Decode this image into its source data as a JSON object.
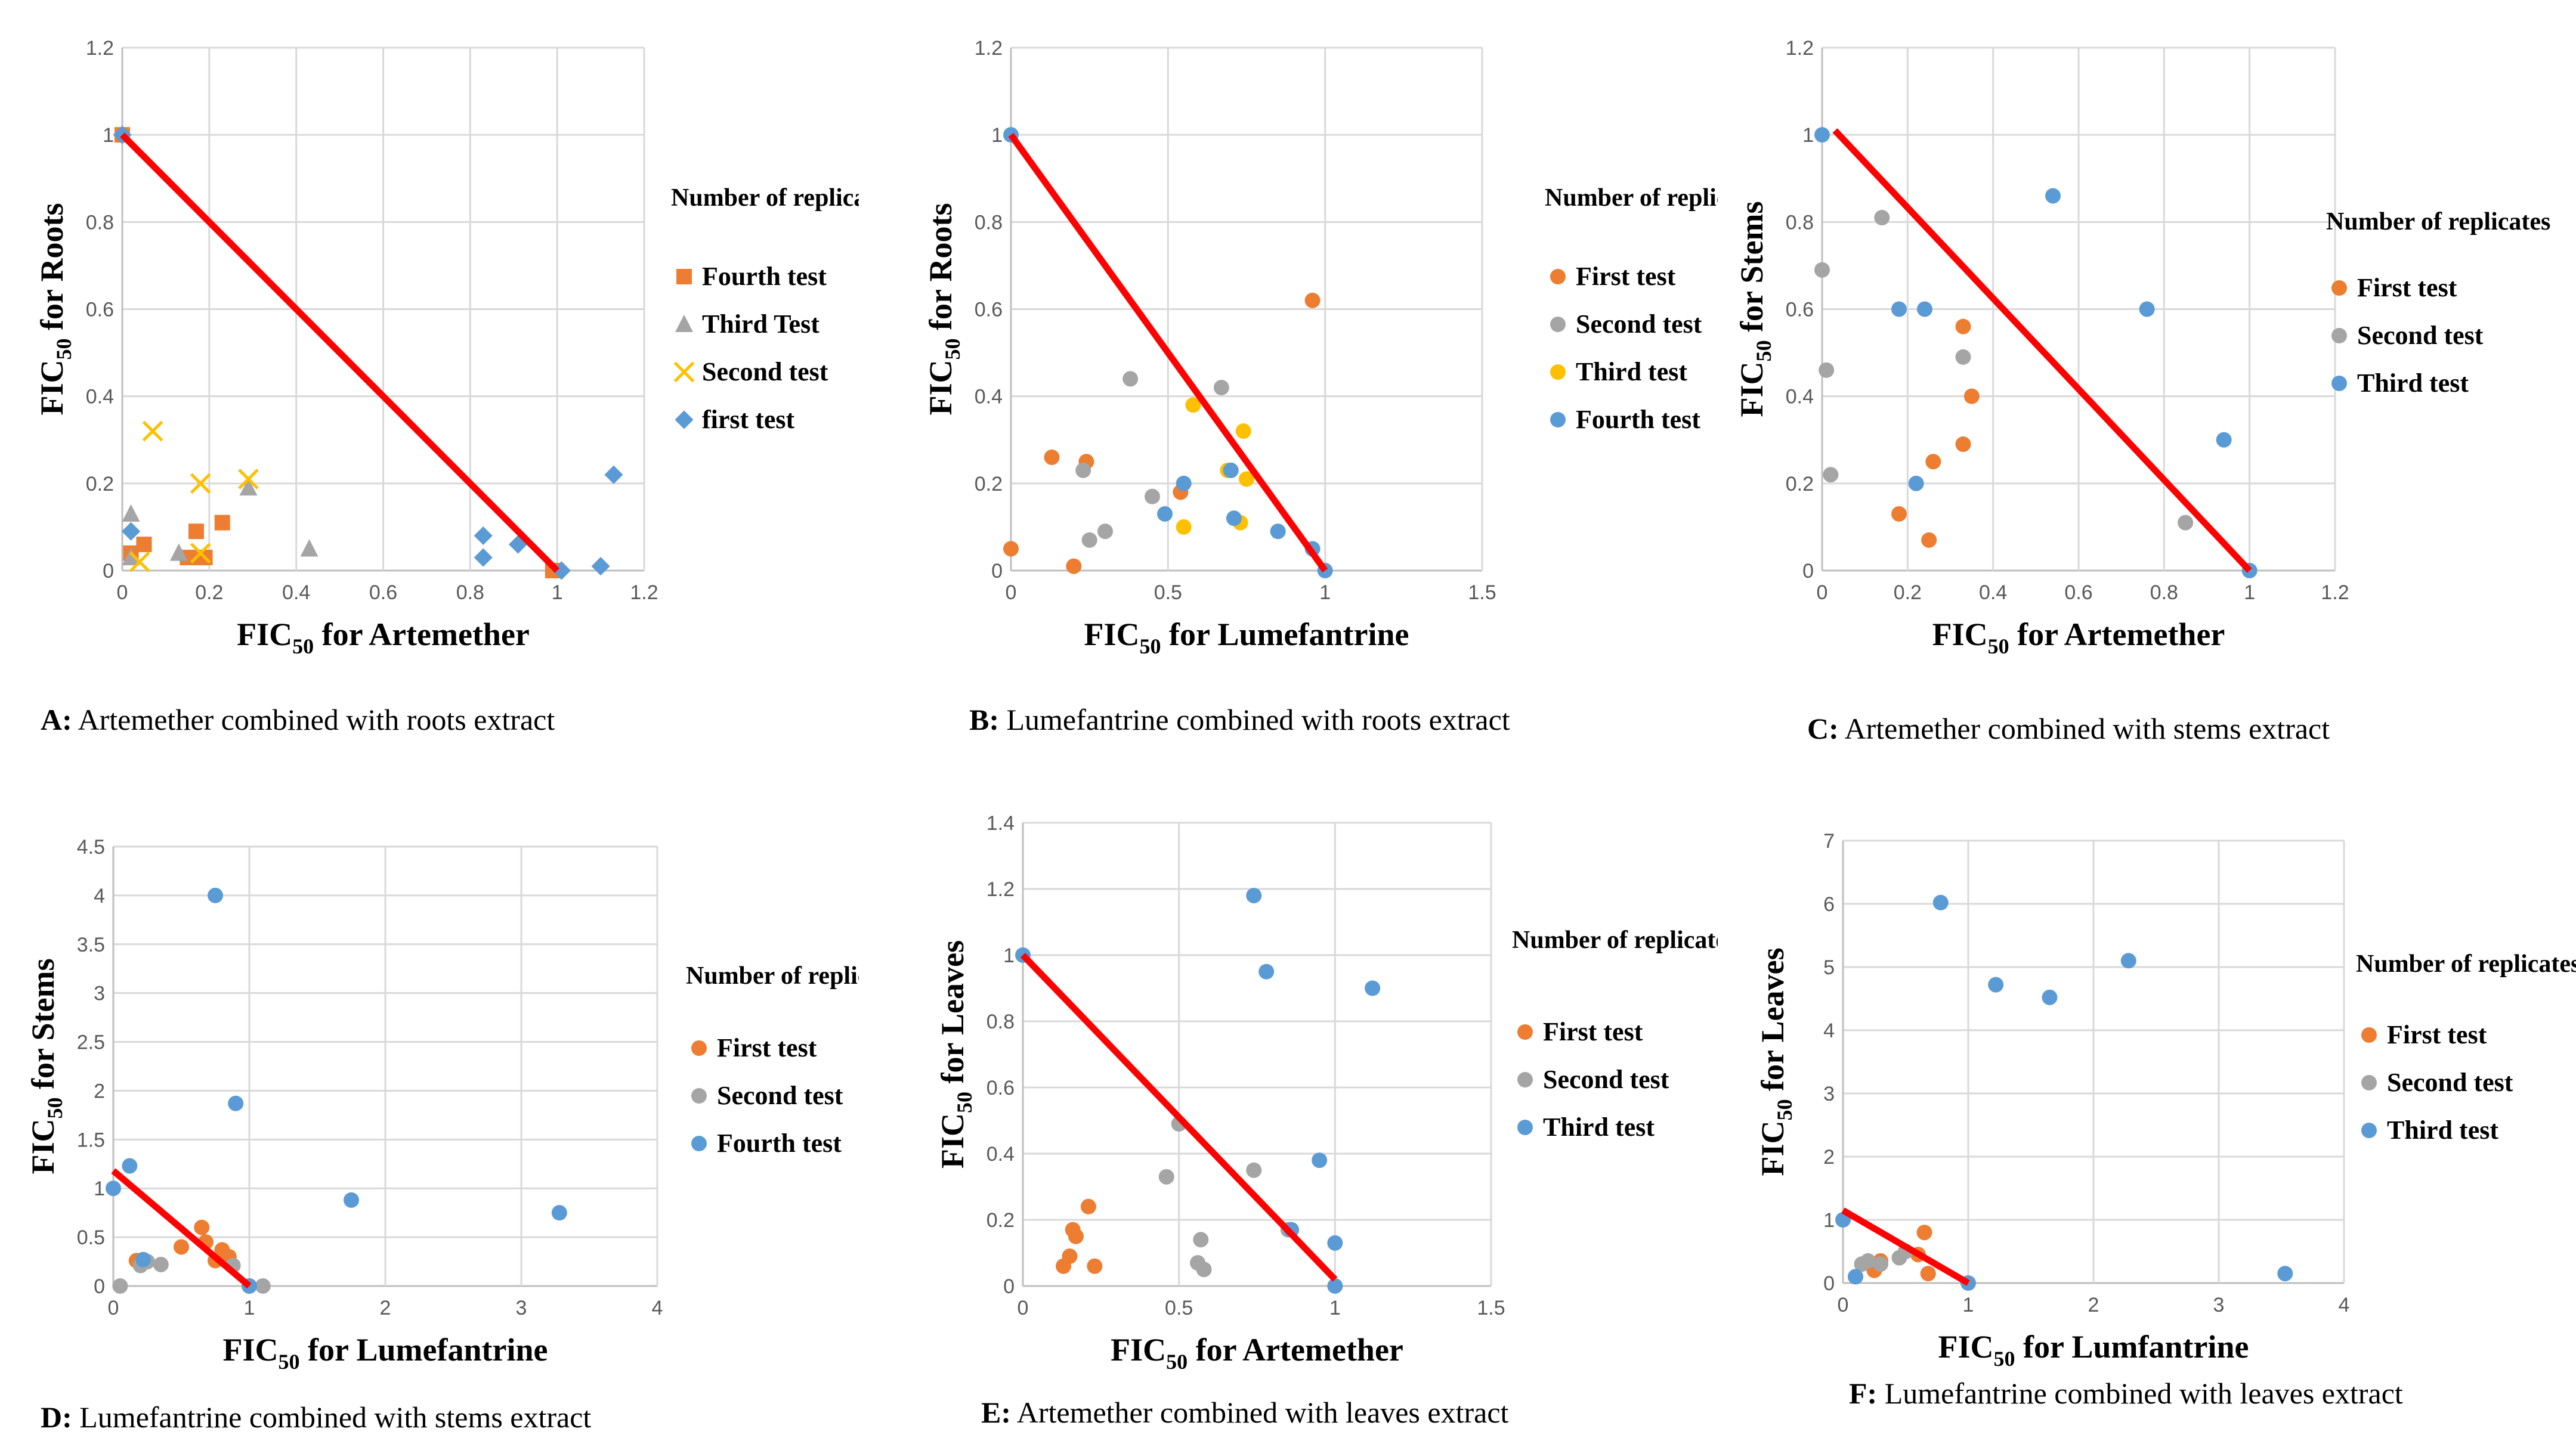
{
  "colors": {
    "orange": "#ED7D31",
    "gray": "#A5A5A5",
    "yellow": "#FFC000",
    "blue": "#5B9BD5",
    "line": "#FF0000"
  },
  "chart_data": [
    {
      "id": "A",
      "type": "scatter",
      "caption_letter": "A:",
      "caption_text": " Artemether  combined  with  roots  extract",
      "xlabel_main": "FIC",
      "xlabel_sub": "50",
      "xlabel_rest": "  for Artemether",
      "ylabel_main": "FIC",
      "ylabel_sub": "50",
      "ylabel_rest": "  for Roots",
      "xlim": [
        0,
        1.2
      ],
      "ylim": [
        0,
        1.2
      ],
      "xticks": [
        "0",
        "0.2",
        "0.4",
        "0.6",
        "0.8",
        "1",
        "1.2"
      ],
      "yticks": [
        "0",
        "0.2",
        "0.4",
        "0.6",
        "0.8",
        "1",
        "1.2"
      ],
      "legend_title": "Number of replicates",
      "line": [
        [
          0,
          1
        ],
        [
          1,
          0
        ]
      ],
      "series": [
        {
          "name": "Fourth test",
          "marker": "square",
          "color": "#ED7D31",
          "points": [
            [
              0,
              1
            ],
            [
              0.02,
              0.04
            ],
            [
              0.05,
              0.06
            ],
            [
              0.15,
              0.03
            ],
            [
              0.17,
              0.09
            ],
            [
              0.18,
              0.03
            ],
            [
              0.19,
              0.03
            ],
            [
              0.23,
              0.11
            ],
            [
              0.99,
              0
            ]
          ]
        },
        {
          "name": "Third Test",
          "marker": "triangle",
          "color": "#A5A5A5",
          "points": [
            [
              0.02,
              0.13
            ],
            [
              0.02,
              0.03
            ],
            [
              0.13,
              0.04
            ],
            [
              0.29,
              0.19
            ],
            [
              0.43,
              0.05
            ]
          ]
        },
        {
          "name": "Second test",
          "marker": "x",
          "color": "#FFC000",
          "points": [
            [
              0.07,
              0.32
            ],
            [
              0.18,
              0.2
            ],
            [
              0.29,
              0.21
            ],
            [
              0.04,
              0.02
            ],
            [
              0.18,
              0.04
            ]
          ]
        },
        {
          "name": "first test",
          "marker": "diamond",
          "color": "#5B9BD5",
          "points": [
            [
              0,
              1
            ],
            [
              0.02,
              0.09
            ],
            [
              0.83,
              0.08
            ],
            [
              0.83,
              0.03
            ],
            [
              0.91,
              0.06
            ],
            [
              1.01,
              0
            ],
            [
              1.1,
              0.01
            ],
            [
              1.13,
              0.22
            ]
          ]
        }
      ]
    },
    {
      "id": "B",
      "type": "scatter",
      "caption_letter": "B:",
      "caption_text": " Lumefantrine  combined  with  roots  extract",
      "xlabel_main": "FIC",
      "xlabel_sub": "50",
      "xlabel_rest": "  for Lumefantrine",
      "ylabel_main": "FIC",
      "ylabel_sub": "50",
      "ylabel_rest": "  for Roots",
      "xlim": [
        0,
        1.5
      ],
      "ylim": [
        0,
        1.2
      ],
      "xticks": [
        "0",
        "0.5",
        "1",
        "1.5"
      ],
      "yticks": [
        "0",
        "0.2",
        "0.4",
        "0.6",
        "0.8",
        "1",
        "1.2"
      ],
      "legend_title": "Number of replicates",
      "line": [
        [
          0,
          1
        ],
        [
          1,
          0
        ]
      ],
      "series": [
        {
          "name": "First test",
          "marker": "circle",
          "color": "#ED7D31",
          "points": [
            [
              0,
              0.05
            ],
            [
              0.13,
              0.26
            ],
            [
              0.2,
              0.01
            ],
            [
              0.24,
              0.25
            ],
            [
              0.54,
              0.18
            ],
            [
              0.96,
              0.62
            ]
          ]
        },
        {
          "name": "Second test",
          "marker": "circle",
          "color": "#A5A5A5",
          "points": [
            [
              0.23,
              0.23
            ],
            [
              0.25,
              0.07
            ],
            [
              0.3,
              0.09
            ],
            [
              0.38,
              0.44
            ],
            [
              0.45,
              0.17
            ],
            [
              0.67,
              0.42
            ],
            [
              0.7,
              0.23
            ]
          ]
        },
        {
          "name": "Third test",
          "marker": "circle",
          "color": "#FFC000",
          "points": [
            [
              0.55,
              0.1
            ],
            [
              0.58,
              0.38
            ],
            [
              0.69,
              0.23
            ],
            [
              0.73,
              0.11
            ],
            [
              0.74,
              0.32
            ],
            [
              0.75,
              0.21
            ]
          ]
        },
        {
          "name": "Fourth test",
          "marker": "circle",
          "color": "#5B9BD5",
          "points": [
            [
              0,
              1
            ],
            [
              0.49,
              0.13
            ],
            [
              0.55,
              0.2
            ],
            [
              0.7,
              0.23
            ],
            [
              0.71,
              0.12
            ],
            [
              0.85,
              0.09
            ],
            [
              0.96,
              0.05
            ],
            [
              1,
              0
            ]
          ]
        }
      ]
    },
    {
      "id": "C",
      "type": "scatter",
      "caption_letter": "C:",
      "caption_text": " Artemether  combined  with  stems  extract",
      "xlabel_main": "FIC",
      "xlabel_sub": "50",
      "xlabel_rest": "  for  Artemether",
      "ylabel_main": "FIC",
      "ylabel_sub": "50",
      "ylabel_rest": "  for Stems",
      "xlim": [
        0,
        1.2
      ],
      "ylim": [
        0,
        1.2
      ],
      "xticks": [
        "0",
        "0.2",
        "0.4",
        "0.6",
        "0.8",
        "1",
        "1.2"
      ],
      "yticks": [
        "0",
        "0.2",
        "0.4",
        "0.6",
        "0.8",
        "1",
        "1.2"
      ],
      "legend_title": "Number of replicates",
      "line": [
        [
          0.03,
          1.01
        ],
        [
          1,
          0
        ]
      ],
      "series": [
        {
          "name": "First test",
          "marker": "circle",
          "color": "#ED7D31",
          "points": [
            [
              0.18,
              0.13
            ],
            [
              0.25,
              0.07
            ],
            [
              0.26,
              0.25
            ],
            [
              0.33,
              0.29
            ],
            [
              0.33,
              0.56
            ],
            [
              0.35,
              0.4
            ]
          ]
        },
        {
          "name": "Second test",
          "marker": "circle",
          "color": "#A5A5A5",
          "points": [
            [
              0,
              0.69
            ],
            [
              0.01,
              0.46
            ],
            [
              0.02,
              0.22
            ],
            [
              0.14,
              0.81
            ],
            [
              0.33,
              0.49
            ],
            [
              0.85,
              0.11
            ]
          ]
        },
        {
          "name": "Third test",
          "marker": "circle",
          "color": "#5B9BD5",
          "points": [
            [
              0,
              1
            ],
            [
              0.18,
              0.6
            ],
            [
              0.22,
              0.2
            ],
            [
              0.24,
              0.6
            ],
            [
              0.54,
              0.86
            ],
            [
              0.76,
              0.6
            ],
            [
              0.94,
              0.3
            ],
            [
              1,
              0
            ]
          ]
        }
      ]
    },
    {
      "id": "D",
      "type": "scatter",
      "caption_letter": "D:",
      "caption_text": " Lumefantrine  combined  with  stems  extract",
      "xlabel_main": "FIC",
      "xlabel_sub": "50",
      "xlabel_rest": "  for  Lumefantrine",
      "ylabel_main": "FIC",
      "ylabel_sub": "50",
      "ylabel_rest": "  for Stems",
      "xlim": [
        0,
        4
      ],
      "ylim": [
        0,
        4.5
      ],
      "xticks": [
        "0",
        "1",
        "2",
        "3",
        "4"
      ],
      "yticks": [
        "0",
        "0.5",
        "1",
        "1.5",
        "2",
        "2.5",
        "3",
        "3.5",
        "4",
        "4.5"
      ],
      "legend_title": "Number of replicates",
      "line": [
        [
          0,
          1.18
        ],
        [
          1,
          0
        ]
      ],
      "series": [
        {
          "name": "First test",
          "marker": "circle",
          "color": "#ED7D31",
          "points": [
            [
              0.17,
              0.26
            ],
            [
              0.5,
              0.4
            ],
            [
              0.65,
              0.6
            ],
            [
              0.68,
              0.45
            ],
            [
              0.75,
              0.26
            ],
            [
              0.8,
              0.37
            ],
            [
              0.85,
              0.3
            ],
            [
              1,
              0
            ]
          ]
        },
        {
          "name": "Second test",
          "marker": "circle",
          "color": "#A5A5A5",
          "points": [
            [
              0.05,
              0
            ],
            [
              0.2,
              0.21
            ],
            [
              0.25,
              0.25
            ],
            [
              0.35,
              0.22
            ],
            [
              0.88,
              0.21
            ],
            [
              1.1,
              0
            ]
          ]
        },
        {
          "name": "Fourth test",
          "marker": "circle",
          "color": "#5B9BD5",
          "points": [
            [
              0,
              1
            ],
            [
              0.12,
              1.23
            ],
            [
              0.22,
              0.27
            ],
            [
              0.75,
              4
            ],
            [
              0.9,
              1.87
            ],
            [
              1.75,
              0.88
            ],
            [
              3.28,
              0.75
            ],
            [
              1,
              0
            ]
          ]
        }
      ]
    },
    {
      "id": "E",
      "type": "scatter",
      "caption_letter": "E:",
      "caption_text": " Artemether  combined  with  leaves  extract",
      "xlabel_main": "FIC",
      "xlabel_sub": "50",
      "xlabel_rest": "  for  Artemether",
      "ylabel_main": "FIC",
      "ylabel_sub": "50",
      "ylabel_rest": "  for Leaves",
      "xlim": [
        0,
        1.5
      ],
      "ylim": [
        0,
        1.4
      ],
      "xticks": [
        "0",
        "0.5",
        "1",
        "1.5"
      ],
      "yticks": [
        "0",
        "0.2",
        "0.4",
        "0.6",
        "0.8",
        "1",
        "1.2",
        "1.4"
      ],
      "legend_title": "Number of replicates",
      "line": [
        [
          0,
          1
        ],
        [
          1,
          0.02
        ]
      ],
      "series": [
        {
          "name": "First test",
          "marker": "circle",
          "color": "#ED7D31",
          "points": [
            [
              0.13,
              0.06
            ],
            [
              0.15,
              0.09
            ],
            [
              0.16,
              0.17
            ],
            [
              0.17,
              0.15
            ],
            [
              0.21,
              0.24
            ],
            [
              0.23,
              0.06
            ]
          ]
        },
        {
          "name": "Second test",
          "marker": "circle",
          "color": "#A5A5A5",
          "points": [
            [
              0.46,
              0.33
            ],
            [
              0.5,
              0.49
            ],
            [
              0.56,
              0.07
            ],
            [
              0.57,
              0.14
            ],
            [
              0.58,
              0.05
            ],
            [
              0.74,
              0.35
            ],
            [
              0.85,
              0.17
            ]
          ]
        },
        {
          "name": "Third test",
          "marker": "circle",
          "color": "#5B9BD5",
          "points": [
            [
              0,
              1
            ],
            [
              0.74,
              1.18
            ],
            [
              0.78,
              0.95
            ],
            [
              0.95,
              0.38
            ],
            [
              1,
              0.13
            ],
            [
              1,
              0
            ],
            [
              1.12,
              0.9
            ],
            [
              0.86,
              0.17
            ]
          ]
        }
      ]
    },
    {
      "id": "F",
      "type": "scatter",
      "caption_letter": "F:",
      "caption_text": " Lumefantrine  combined  with  leaves  extract",
      "xlabel_main": "FIC",
      "xlabel_sub": "50",
      "xlabel_rest": "  for  Lumfantrine",
      "ylabel_main": "FIC",
      "ylabel_sub": "50",
      "ylabel_rest": "  for Leaves",
      "xlim": [
        0,
        4
      ],
      "ylim": [
        0,
        7
      ],
      "xticks": [
        "0",
        "1",
        "2",
        "3",
        "4"
      ],
      "yticks": [
        "0",
        "1",
        "2",
        "3",
        "4",
        "5",
        "6",
        "7"
      ],
      "legend_title": "Number of replicates",
      "line": [
        [
          0,
          1.15
        ],
        [
          1,
          0
        ]
      ],
      "series": [
        {
          "name": "First test",
          "marker": "circle",
          "color": "#ED7D31",
          "points": [
            [
              0.25,
              0.2
            ],
            [
              0.3,
              0.35
            ],
            [
              0.6,
              0.45
            ],
            [
              0.65,
              0.8
            ],
            [
              0.68,
              0.15
            ]
          ]
        },
        {
          "name": "Second test",
          "marker": "circle",
          "color": "#A5A5A5",
          "points": [
            [
              0.1,
              0.1
            ],
            [
              0.15,
              0.3
            ],
            [
              0.2,
              0.35
            ],
            [
              0.3,
              0.3
            ],
            [
              0.45,
              0.4
            ],
            [
              0.5,
              0.5
            ]
          ]
        },
        {
          "name": "Third test",
          "marker": "circle",
          "color": "#5B9BD5",
          "points": [
            [
              0,
              1
            ],
            [
              0.1,
              0.1
            ],
            [
              0.78,
              6.02
            ],
            [
              1,
              0
            ],
            [
              1.22,
              4.72
            ],
            [
              1.65,
              4.52
            ],
            [
              2.28,
              5.1
            ],
            [
              3.53,
              0.15
            ]
          ]
        }
      ]
    }
  ]
}
